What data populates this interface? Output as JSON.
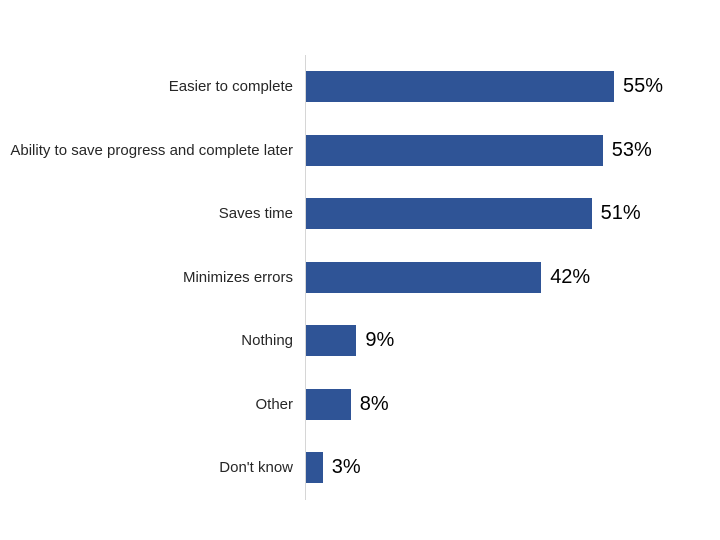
{
  "chart_data": {
    "type": "bar",
    "orientation": "horizontal",
    "title": "",
    "categories": [
      "Easier to complete",
      "Ability to save progress and complete later",
      "Saves time",
      "Minimizes errors",
      "Nothing",
      "Other",
      "Don't know"
    ],
    "values": [
      55,
      53,
      51,
      42,
      9,
      8,
      3
    ],
    "value_labels": [
      "55%",
      "53%",
      "51%",
      "42%",
      "9%",
      "8%",
      "3%"
    ],
    "xlabel": "",
    "ylabel": "",
    "xlim": [
      0,
      60
    ],
    "grid": false,
    "legend": false,
    "bar_color": "#2f5496",
    "axis_line_color": "#d6d6d6",
    "category_label_color": "#262626",
    "value_label_color": "#000000",
    "background_color": "#ffffff"
  }
}
